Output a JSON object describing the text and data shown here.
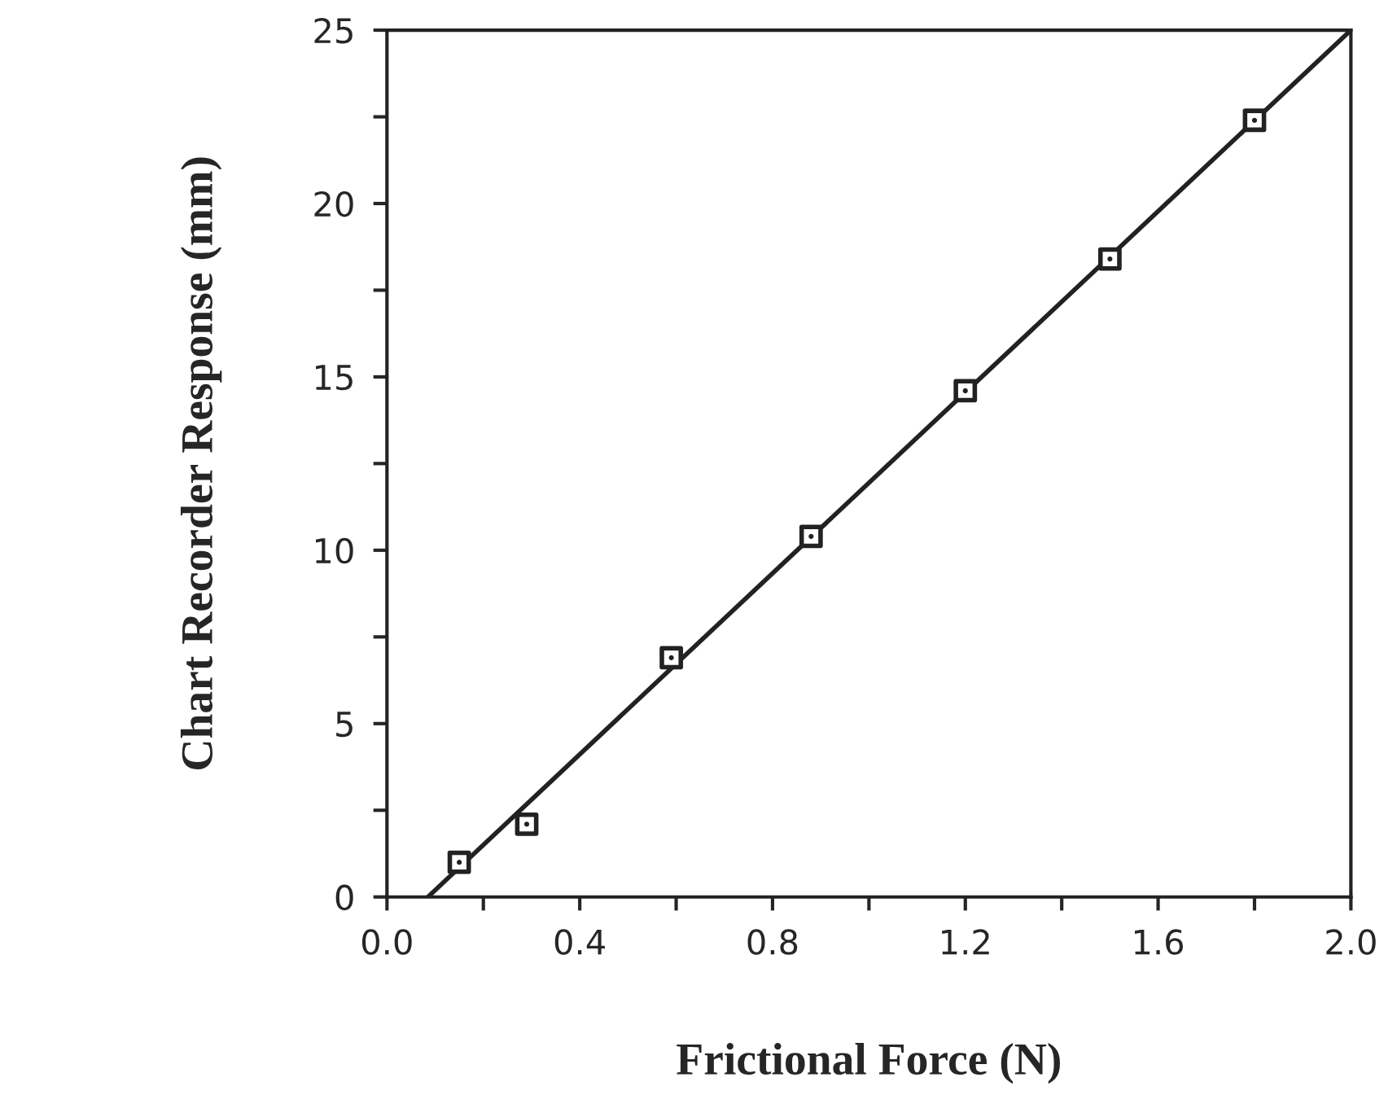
{
  "chart_data": {
    "type": "scatter",
    "xlabel": "Frictional Force (N)",
    "ylabel": "Chart Recorder Response (mm)",
    "xlim": [
      0,
      2.0
    ],
    "ylim": [
      0,
      25
    ],
    "xticks": [
      {
        "value": 0,
        "label": "0.0"
      },
      {
        "value": 0.2,
        "label": null
      },
      {
        "value": 0.4,
        "label": "0.4"
      },
      {
        "value": 0.6,
        "label": null
      },
      {
        "value": 0.8,
        "label": "0.8"
      },
      {
        "value": 1.0,
        "label": null
      },
      {
        "value": 1.2,
        "label": "1.2"
      },
      {
        "value": 1.4,
        "label": null
      },
      {
        "value": 1.6,
        "label": "1.6"
      },
      {
        "value": 1.8,
        "label": null
      },
      {
        "value": 2.0,
        "label": "2.0"
      }
    ],
    "yticks": [
      0,
      {
        "value": 2.5,
        "label": null
      },
      5,
      {
        "value": 7.5,
        "label": null
      },
      10,
      {
        "value": 12.5,
        "label": null
      },
      15,
      {
        "value": 17.5,
        "label": null
      },
      20,
      {
        "value": 22.5,
        "label": null
      },
      25
    ],
    "grid": false,
    "series": [
      {
        "color": "#222222",
        "marker": "square",
        "x": [
          0.15,
          0.29,
          0.59,
          0.88,
          1.2,
          1.5,
          1.8
        ],
        "values": [
          1.0,
          2.1,
          6.9,
          10.4,
          14.6,
          18.4,
          22.4
        ]
      },
      {
        "type": "line",
        "color": "#222222",
        "marker": "none",
        "line_style": "solid",
        "x": [
          0.085,
          2.0
        ],
        "values": [
          0,
          25
        ]
      }
    ]
  }
}
